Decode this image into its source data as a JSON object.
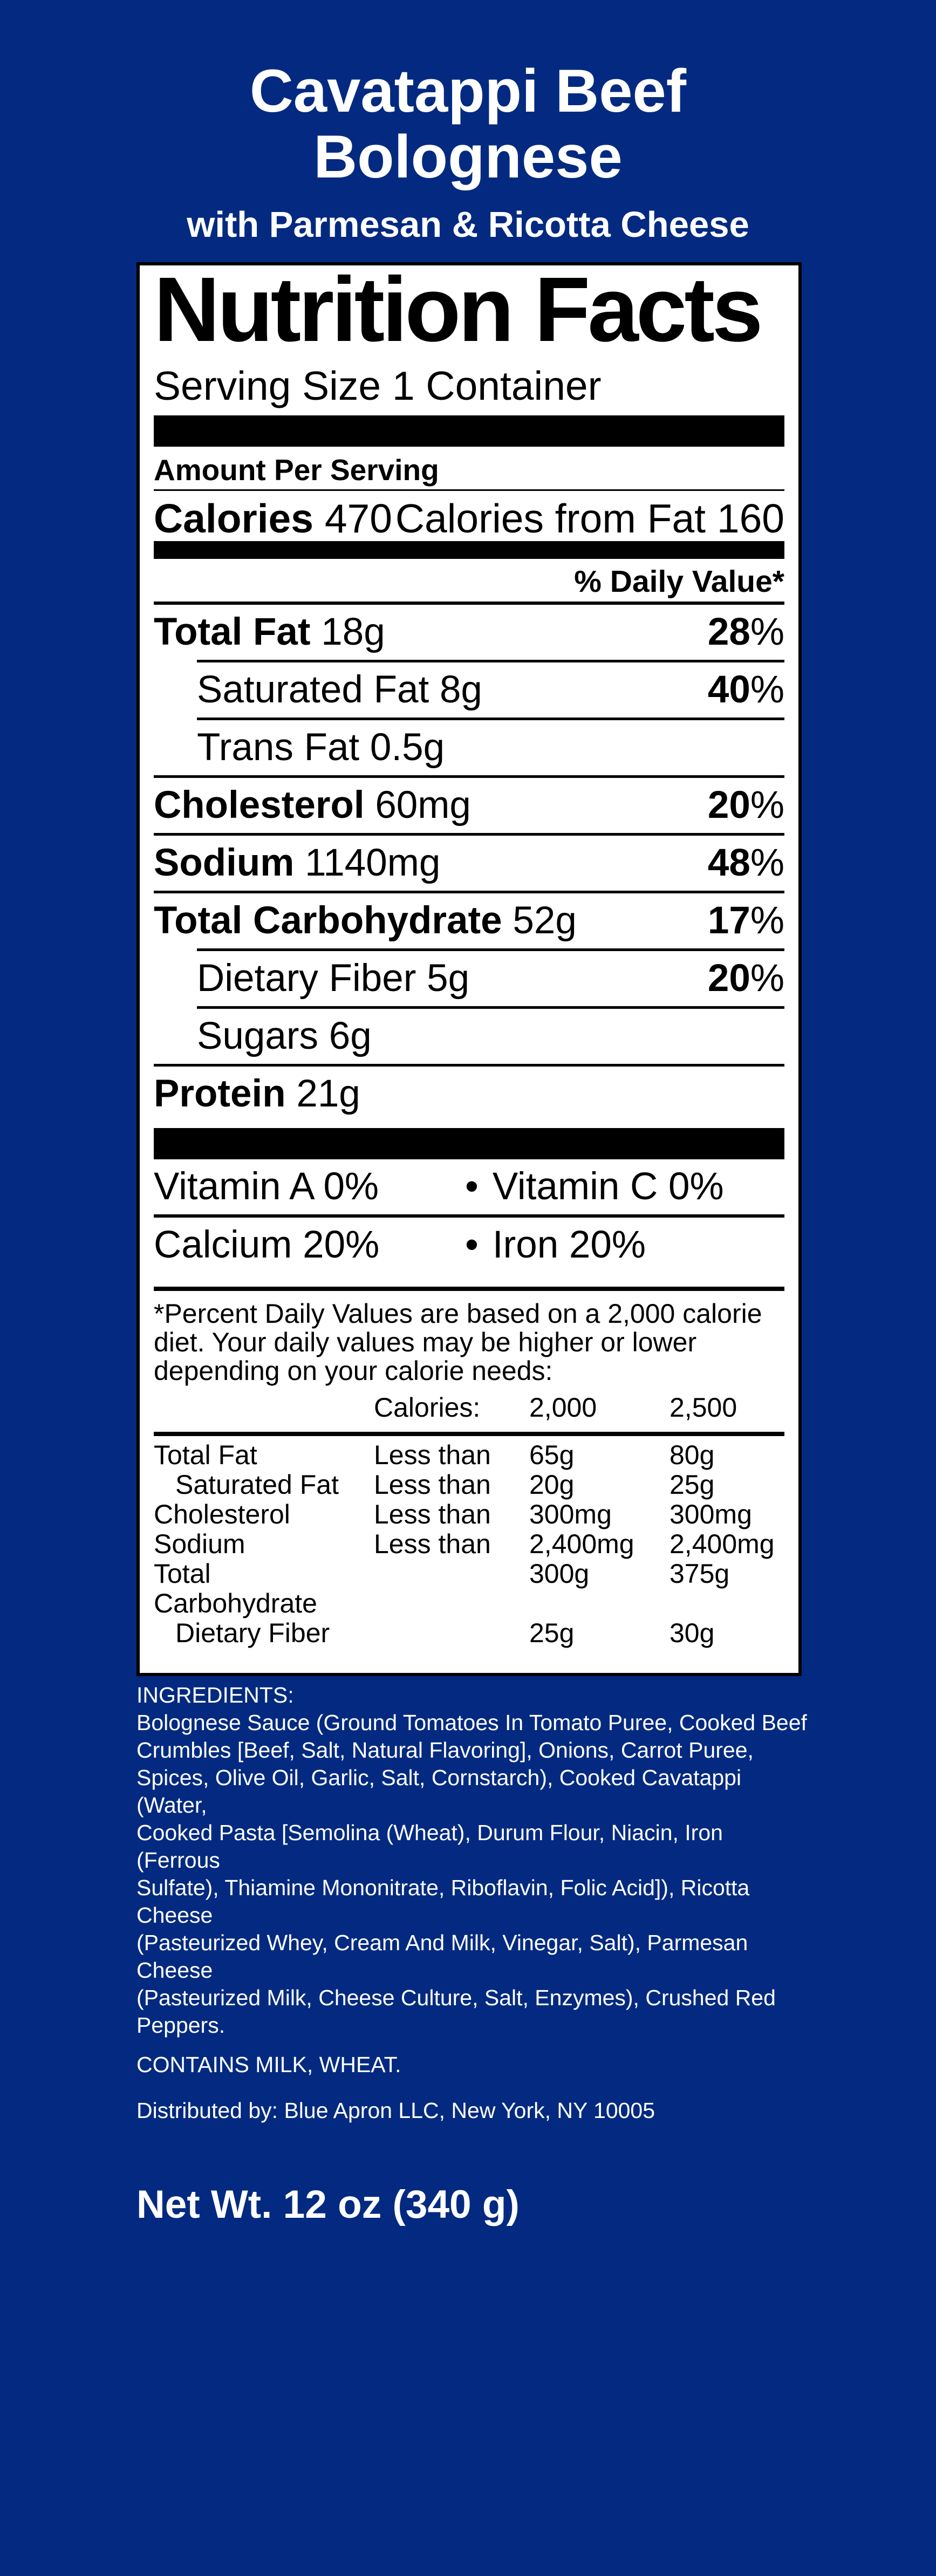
{
  "colors": {
    "background": "#032a80",
    "panel": "#ffffff",
    "ink": "#000000",
    "text": "#ffffff"
  },
  "header": {
    "title_line1": "Cavatappi Beef",
    "title_line2": "Bolognese",
    "subtitle": "with Parmesan & Ricotta Cheese"
  },
  "nutrition": {
    "heading": "Nutrition Facts",
    "serving_size": "Serving Size 1 Container",
    "amount_per_serving": "Amount Per Serving",
    "calories_label": "Calories",
    "calories_value": "470",
    "calories_from_fat_label": "Calories from Fat",
    "calories_from_fat_value": "160",
    "daily_value_header": "% Daily Value*",
    "percent_sign": "%",
    "bullet": "•",
    "rows": [
      {
        "label": "Total Fat",
        "amount": "18g",
        "dv": "28"
      },
      {
        "label": "Saturated Fat",
        "amount": "8g",
        "dv": "40"
      },
      {
        "label": "Trans Fat",
        "amount": "0.5g",
        "dv": ""
      },
      {
        "label": "Cholesterol",
        "amount": "60mg",
        "dv": "20"
      },
      {
        "label": "Sodium",
        "amount": "1140mg",
        "dv": "48"
      },
      {
        "label": "Total Carbohydrate",
        "amount": "52g",
        "dv": "17"
      },
      {
        "label": "Dietary Fiber",
        "amount": "5g",
        "dv": "20"
      },
      {
        "label": "Sugars",
        "amount": "6g",
        "dv": ""
      },
      {
        "label": "Protein",
        "amount": "21g",
        "dv": ""
      }
    ],
    "vitamins": [
      {
        "left": "Vitamin A 0%",
        "right": "Vitamin C 0%"
      },
      {
        "left": "Calcium 20%",
        "right": "Iron 20%"
      }
    ],
    "footnote": "*Percent Daily Values are based on a 2,000 calorie diet. Your daily values may be higher or lower depending on your calorie needs:",
    "table": {
      "header_label": "Calories:",
      "col_2000": "2,000",
      "col_2500": "2,500",
      "rows": [
        {
          "nutrient": "Total Fat",
          "qualifier": "Less than",
          "v2000": "65g",
          "v2500": "80g"
        },
        {
          "nutrient": "Saturated Fat",
          "qualifier": "Less than",
          "v2000": "20g",
          "v2500": "25g"
        },
        {
          "nutrient": "Cholesterol",
          "qualifier": "Less than",
          "v2000": "300mg",
          "v2500": "300mg"
        },
        {
          "nutrient": "Sodium",
          "qualifier": "Less than",
          "v2000": "2,400mg",
          "v2500": "2,400mg"
        },
        {
          "nutrient": "Total Carbohydrate",
          "qualifier": "",
          "v2000": "300g",
          "v2500": "375g"
        },
        {
          "nutrient": "Dietary Fiber",
          "qualifier": "",
          "v2000": "25g",
          "v2500": "30g"
        }
      ]
    }
  },
  "ingredients": {
    "heading": "INGREDIENTS:",
    "text": "Bolognese Sauce (Ground Tomatoes In Tomato Puree, Cooked Beef\nCrumbles [Beef, Salt, Natural Flavoring], Onions, Carrot Puree,\nSpices, Olive Oil, Garlic, Salt, Cornstarch), Cooked Cavatappi (Water,\nCooked Pasta [Semolina (Wheat), Durum Flour, Niacin, Iron (Ferrous\nSulfate), Thiamine Mononitrate, Riboflavin, Folic Acid]), Ricotta Cheese\n(Pasteurized Whey, Cream And Milk, Vinegar, Salt), Parmesan Cheese\n(Pasteurized Milk, Cheese Culture, Salt, Enzymes), Crushed Red\nPeppers.",
    "contains": "CONTAINS MILK, WHEAT.",
    "distributed_by": "Distributed by: Blue Apron LLC, New York, NY 10005"
  },
  "net_weight": "Net Wt. 12 oz (340 g)"
}
